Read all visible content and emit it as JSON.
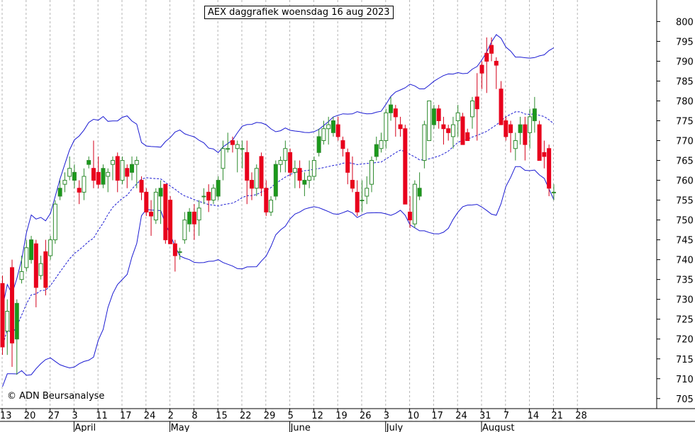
{
  "chart_data": {
    "type": "candlestick",
    "title": "AEX daggrafiek woensdag 16 aug 2023",
    "copyright": "© ADN Beursanalyse",
    "y_ticks": [
      705,
      710,
      715,
      720,
      725,
      730,
      735,
      740,
      745,
      750,
      755,
      760,
      765,
      770,
      775,
      780,
      785,
      790,
      795,
      800
    ],
    "ylim": [
      703,
      804
    ],
    "x_tick_labels": [
      "13",
      "20",
      "27",
      "3",
      "11",
      "17",
      "24",
      "2",
      "8",
      "15",
      "22",
      "29",
      "5",
      "12",
      "19",
      "26",
      "3",
      "10",
      "17",
      "24",
      "31",
      "7",
      "14",
      "21",
      "28"
    ],
    "month_labels": [
      "April",
      "May",
      "June",
      "July",
      "August"
    ],
    "bollinger_bands": true,
    "candles": [
      [
        734,
        736,
        716,
        718
      ],
      [
        722,
        730,
        716,
        727
      ],
      [
        738,
        740,
        713,
        719
      ],
      [
        720,
        730,
        711,
        729
      ],
      [
        735,
        741,
        734,
        737
      ],
      [
        738,
        745,
        737,
        743
      ],
      [
        740,
        746,
        739,
        745
      ],
      [
        744,
        745,
        728,
        733
      ],
      [
        736,
        741,
        735,
        739
      ],
      [
        742,
        745,
        731,
        733
      ],
      [
        741,
        746,
        740,
        745
      ],
      [
        745,
        755,
        744,
        754
      ],
      [
        756,
        760,
        755,
        758
      ],
      [
        759,
        762,
        757,
        760
      ],
      [
        761,
        766,
        760,
        763
      ],
      [
        760,
        764,
        758,
        762
      ],
      [
        758,
        760,
        754,
        757
      ],
      [
        757,
        763,
        755,
        761
      ],
      [
        764,
        766,
        763,
        765
      ],
      [
        763,
        770,
        758,
        760
      ],
      [
        762,
        766,
        758,
        759
      ],
      [
        759,
        764,
        758,
        763
      ],
      [
        761,
        763,
        757,
        762
      ],
      [
        764,
        766,
        760,
        765
      ],
      [
        766,
        767,
        757,
        760
      ],
      [
        760,
        766,
        759,
        765
      ],
      [
        763,
        764,
        758,
        761
      ],
      [
        762,
        766,
        760,
        764
      ],
      [
        764,
        766,
        758,
        765
      ],
      [
        760,
        761,
        755,
        757
      ],
      [
        757,
        758,
        751,
        752
      ],
      [
        752,
        755,
        746,
        751
      ],
      [
        750,
        758,
        749,
        757
      ],
      [
        756,
        760,
        749,
        758
      ],
      [
        759,
        759,
        744,
        745
      ],
      [
        755,
        756,
        744,
        744
      ],
      [
        744,
        745,
        737,
        741
      ],
      [
        742,
        743,
        740,
        742
      ],
      [
        745,
        752,
        744,
        750
      ],
      [
        749,
        753,
        747,
        752
      ],
      [
        752,
        754,
        745,
        749
      ],
      [
        750,
        755,
        746,
        753
      ],
      [
        756,
        758,
        754,
        756
      ],
      [
        757,
        759,
        752,
        755
      ],
      [
        755,
        759,
        754,
        758
      ],
      [
        756,
        761,
        755,
        760
      ],
      [
        763,
        770,
        760,
        768
      ],
      [
        768,
        772,
        767,
        768
      ],
      [
        770,
        771,
        767,
        769
      ],
      [
        768,
        770,
        762,
        769
      ],
      [
        768,
        770,
        763,
        768
      ],
      [
        767,
        770,
        754,
        760
      ],
      [
        760,
        762,
        755,
        758
      ],
      [
        758,
        764,
        756,
        763
      ],
      [
        766,
        767,
        756,
        758
      ],
      [
        758,
        760,
        751,
        752
      ],
      [
        752,
        756,
        751,
        755
      ],
      [
        756,
        765,
        755,
        764
      ],
      [
        764,
        766,
        762,
        765
      ],
      [
        765,
        770,
        762,
        768
      ],
      [
        767,
        768,
        761,
        762
      ],
      [
        762,
        765,
        758,
        763
      ],
      [
        763,
        765,
        758,
        760
      ],
      [
        759,
        762,
        756,
        760
      ],
      [
        760,
        765,
        758,
        761
      ],
      [
        761,
        766,
        760,
        765
      ],
      [
        767,
        773,
        766,
        771
      ],
      [
        770,
        775,
        769,
        773
      ],
      [
        773,
        776,
        769,
        774
      ],
      [
        772,
        776,
        771,
        775
      ],
      [
        774,
        776,
        770,
        771
      ],
      [
        770,
        771,
        766,
        768
      ],
      [
        767,
        768,
        759,
        762
      ],
      [
        760,
        766,
        757,
        758
      ],
      [
        757,
        760,
        751,
        752
      ],
      [
        755,
        760,
        752,
        755
      ],
      [
        756,
        761,
        754,
        758
      ],
      [
        759,
        766,
        757,
        765
      ],
      [
        766,
        771,
        765,
        769
      ],
      [
        768,
        772,
        767,
        770
      ],
      [
        770,
        778,
        768,
        777
      ],
      [
        777,
        781,
        775,
        779
      ],
      [
        778,
        779,
        771,
        776
      ],
      [
        774,
        776,
        771,
        773
      ],
      [
        773,
        774,
        755,
        754
      ],
      [
        752,
        756,
        748,
        750
      ],
      [
        749,
        760,
        748,
        759
      ],
      [
        756,
        762,
        755,
        758
      ],
      [
        765,
        775,
        763,
        774
      ],
      [
        770,
        779,
        770,
        780
      ],
      [
        774,
        779,
        773,
        778
      ],
      [
        778,
        779,
        773,
        775
      ],
      [
        774,
        776,
        769,
        773
      ],
      [
        773,
        774,
        770,
        772
      ],
      [
        771,
        776,
        768,
        774
      ],
      [
        775,
        779,
        771,
        777
      ],
      [
        776,
        777,
        769,
        769
      ],
      [
        772,
        773,
        770,
        770
      ],
      [
        776,
        781,
        773,
        780
      ],
      [
        781,
        787,
        770,
        778
      ],
      [
        789,
        790,
        783,
        787
      ],
      [
        792,
        796,
        782,
        790
      ],
      [
        794,
        796,
        790,
        792
      ],
      [
        790,
        791,
        783,
        789
      ],
      [
        783,
        785,
        774,
        774
      ],
      [
        775,
        776,
        770,
        771
      ],
      [
        774,
        775,
        767,
        772
      ],
      [
        768,
        772,
        765,
        770
      ],
      [
        772,
        776,
        769,
        774
      ],
      [
        774,
        776,
        765,
        769
      ],
      [
        772,
        778,
        768,
        776
      ],
      [
        775,
        781,
        772,
        778
      ],
      [
        774,
        775,
        765,
        765
      ],
      [
        767,
        770,
        763,
        766
      ],
      [
        768,
        769,
        756,
        758
      ],
      [
        757,
        759,
        755,
        757
      ]
    ]
  }
}
